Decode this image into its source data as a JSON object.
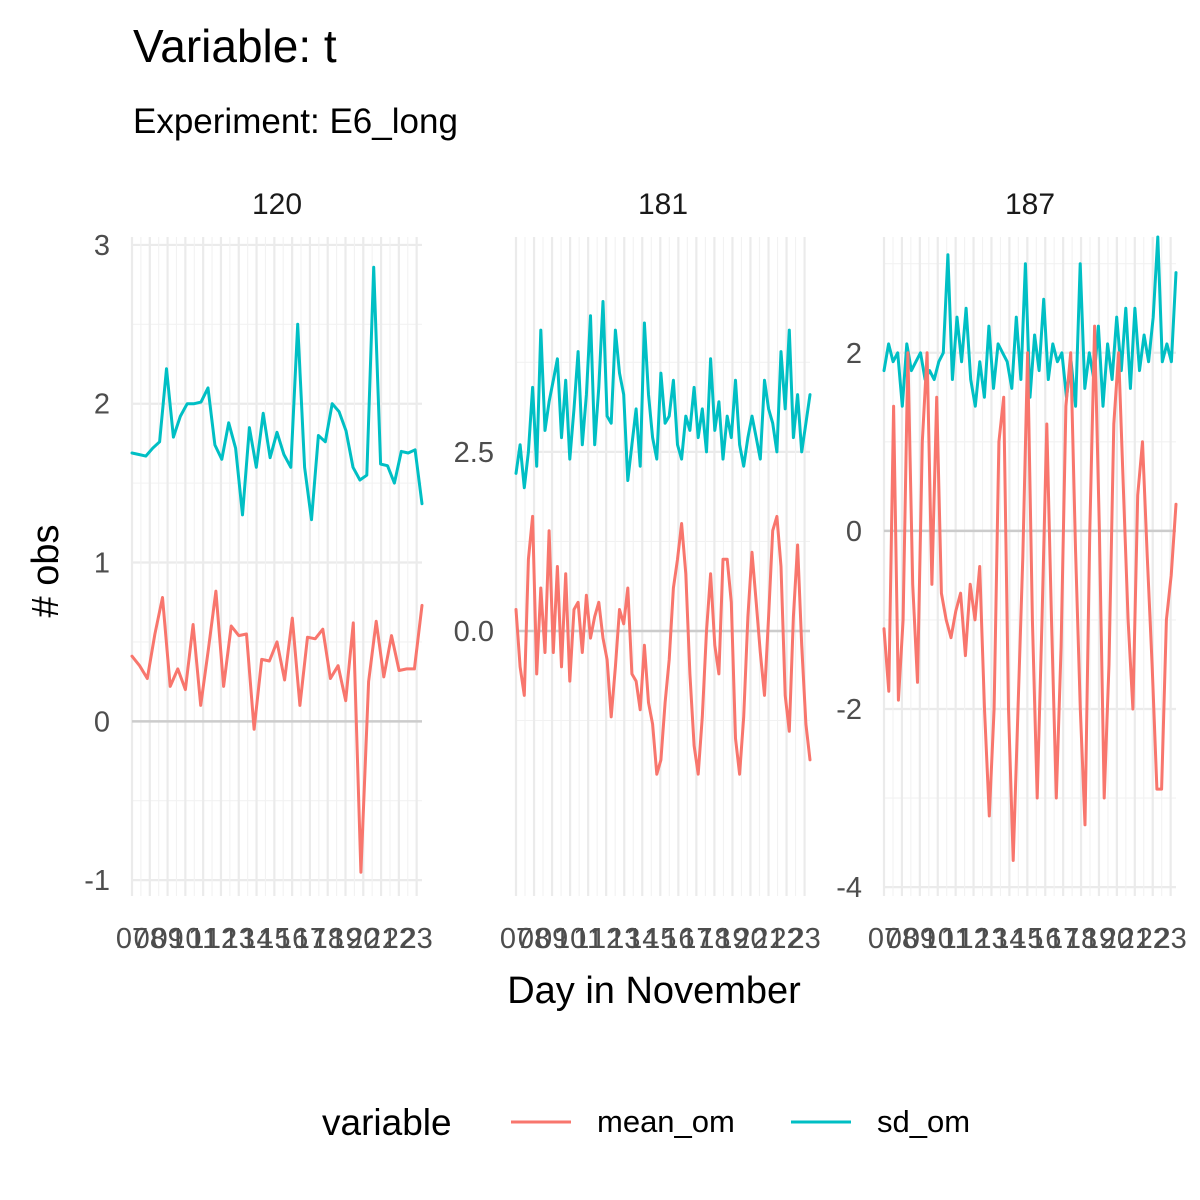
{
  "chart_data": {
    "type": "line",
    "title": "Variable: t",
    "subtitle": "Experiment: E6_long",
    "xlabel": "Day in November",
    "ylabel": "# obs",
    "x_tick_labels": [
      "07",
      "08",
      "09",
      "10",
      "11",
      "12",
      "13",
      "14",
      "15",
      "16",
      "17",
      "18",
      "19",
      "20",
      "21",
      "22",
      "23"
    ],
    "legend": {
      "title": "variable",
      "position": "bottom",
      "entries": [
        {
          "name": "mean_om",
          "color": "#F8766D"
        },
        {
          "name": "sd_om",
          "color": "#00BFC4"
        }
      ]
    },
    "grid": true,
    "panels": [
      {
        "label": "120",
        "xlim": [
          7,
          23.3
        ],
        "ylim": [
          -1.1,
          3.05
        ],
        "y_ticks": [
          -1,
          0,
          1,
          2,
          3
        ],
        "y_tick_labels": [
          "-1",
          "0",
          "1",
          "2",
          "3"
        ],
        "series": [
          {
            "name": "sd_om",
            "values": [
              1.69,
              1.68,
              1.67,
              1.72,
              1.76,
              2.22,
              1.79,
              1.92,
              2.0,
              2.0,
              2.01,
              2.1,
              1.74,
              1.65,
              1.88,
              1.72,
              1.3,
              1.85,
              1.6,
              1.94,
              1.66,
              1.82,
              1.68,
              1.6,
              2.5,
              1.6,
              1.27,
              1.8,
              1.76,
              2.0,
              1.95,
              1.83,
              1.6,
              1.52,
              1.55,
              2.86,
              1.62,
              1.61,
              1.5,
              1.7,
              1.69,
              1.71,
              1.37
            ]
          },
          {
            "name": "mean_om",
            "values": [
              0.41,
              0.35,
              0.27,
              0.55,
              0.78,
              0.22,
              0.33,
              0.2,
              0.61,
              0.1,
              0.45,
              0.82,
              0.22,
              0.6,
              0.54,
              0.55,
              -0.05,
              0.39,
              0.38,
              0.5,
              0.26,
              0.65,
              0.1,
              0.53,
              0.52,
              0.58,
              0.27,
              0.35,
              0.13,
              0.62,
              -0.95,
              0.25,
              0.63,
              0.28,
              0.54,
              0.32,
              0.33,
              0.33,
              0.73
            ]
          }
        ]
      },
      {
        "label": "181",
        "xlim": [
          7,
          23.3
        ],
        "ylim": [
          -3.7,
          5.5
        ],
        "y_ticks": [
          0,
          2.5
        ],
        "y_tick_labels": [
          "0.0",
          "2.5"
        ],
        "series": [
          {
            "name": "sd_om",
            "values": [
              2.2,
              2.6,
              2.0,
              2.5,
              3.4,
              2.3,
              4.2,
              2.8,
              3.2,
              3.5,
              3.8,
              2.7,
              3.5,
              2.4,
              3.1,
              3.9,
              2.6,
              3.3,
              4.4,
              2.6,
              3.4,
              4.6,
              3.0,
              2.9,
              4.2,
              3.6,
              3.3,
              2.1,
              2.6,
              3.1,
              2.3,
              4.3,
              3.3,
              2.7,
              2.4,
              3.6,
              2.9,
              3.0,
              3.5,
              2.6,
              2.4,
              3.0,
              2.8,
              3.4,
              2.7,
              3.1,
              2.5,
              3.8,
              2.8,
              3.2,
              2.4,
              3.0,
              2.7,
              3.5,
              2.6,
              2.3,
              2.7,
              3.0,
              2.7,
              2.4,
              3.5,
              3.1,
              2.9,
              2.5,
              3.9,
              3.1,
              4.2,
              2.7,
              3.3,
              2.5,
              2.9,
              3.3
            ]
          },
          {
            "name": "mean_om",
            "values": [
              0.3,
              -0.5,
              -0.9,
              1.0,
              1.6,
              -0.6,
              0.6,
              -0.3,
              1.4,
              -0.3,
              0.9,
              -0.5,
              0.8,
              -0.7,
              0.3,
              0.4,
              -0.3,
              0.5,
              -0.1,
              0.2,
              0.4,
              -0.1,
              -0.4,
              -1.2,
              -0.5,
              0.3,
              0.1,
              0.6,
              -0.6,
              -0.7,
              -1.1,
              -0.2,
              -1.0,
              -1.3,
              -2.0,
              -1.8,
              -1.0,
              -0.4,
              0.6,
              1.0,
              1.5,
              0.8,
              -0.6,
              -1.6,
              -2.0,
              -1.2,
              0.0,
              0.8,
              -0.2,
              -0.6,
              1.0,
              1.0,
              0.4,
              -1.5,
              -2.0,
              -1.2,
              0.2,
              1.1,
              0.4,
              -0.3,
              -0.9,
              0.2,
              1.4,
              1.6,
              0.9,
              -0.9,
              -1.4,
              0.2,
              1.2,
              -0.2,
              -1.3,
              -1.8
            ]
          }
        ]
      },
      {
        "label": "187",
        "xlim": [
          7,
          23.3
        ],
        "ylim": [
          -4.1,
          3.3
        ],
        "y_ticks": [
          -4,
          -2,
          0,
          2
        ],
        "y_tick_labels": [
          "-4",
          "-2",
          "0",
          "2"
        ],
        "series": [
          {
            "name": "sd_om",
            "values": [
              1.8,
              2.1,
              1.9,
              2.0,
              1.4,
              2.1,
              1.8,
              1.9,
              2.0,
              1.7,
              1.8,
              1.7,
              1.9,
              2.0,
              3.1,
              1.7,
              2.4,
              1.9,
              2.5,
              1.7,
              1.4,
              1.9,
              1.5,
              2.3,
              1.6,
              2.1,
              2.0,
              1.9,
              1.6,
              2.4,
              1.7,
              3.0,
              1.5,
              2.2,
              1.8,
              2.6,
              1.7,
              2.1,
              1.9,
              2.0,
              1.5,
              1.9,
              1.4,
              3.0,
              1.6,
              2.0,
              1.7,
              2.3,
              1.4,
              2.1,
              1.7,
              2.4,
              1.8,
              2.5,
              1.6,
              2.5,
              1.8,
              2.2,
              1.9,
              2.4,
              3.3,
              1.9,
              2.1,
              1.9,
              2.9
            ]
          },
          {
            "name": "mean_om",
            "values": [
              -1.1,
              -1.8,
              1.4,
              -1.9,
              -1.0,
              2.0,
              -0.6,
              -1.7,
              1.0,
              2.0,
              -0.6,
              1.5,
              -0.7,
              -1.0,
              -1.2,
              -0.9,
              -0.7,
              -1.4,
              -0.6,
              -1.0,
              -0.4,
              -2.0,
              -3.2,
              -2.0,
              1.0,
              1.5,
              -2.0,
              -3.7,
              -2.0,
              -0.3,
              2.0,
              -1.0,
              -3.0,
              -1.0,
              1.2,
              -1.0,
              -3.0,
              -1.3,
              1.4,
              2.0,
              -0.2,
              -2.0,
              -3.3,
              0.0,
              2.3,
              0.0,
              -3.0,
              -1.5,
              1.2,
              2.0,
              0.5,
              -1.0,
              -2.0,
              0.4,
              1.0,
              -0.3,
              -1.5,
              -2.9,
              -2.9,
              -1.0,
              -0.5,
              0.3
            ]
          }
        ]
      }
    ]
  }
}
